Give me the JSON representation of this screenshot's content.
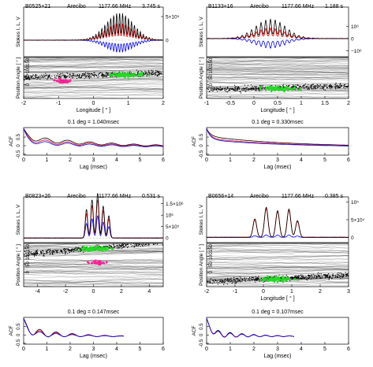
{
  "chart_data": [
    {
      "type": "line",
      "title": {
        "name": "B0525+21",
        "obs": "Arecibo",
        "freq": "1177.66 MHz",
        "period": "3.745 s"
      },
      "stokes": {
        "ylabel": "Stokes I, L, V",
        "xlim": [
          -2,
          2
        ],
        "ylim": [
          -350000.0,
          700000.0
        ],
        "ytick_labels": [
          {
            "v": 500000.0,
            "t": "5×10⁵"
          },
          {
            "v": 0,
            "t": "0"
          }
        ],
        "shape": {
          "type": "comb",
          "center": 0.75,
          "width": 0.55,
          "spacing": 0.085,
          "amp": 580000.0,
          "frac_L": 0.62,
          "frac_V": -0.45
        }
      },
      "pa": {
        "ylabel": "Position Angle [ ° ]",
        "xlabel": "Longitude [ ° ]",
        "ytick_labels": [
          "0",
          "50",
          "100",
          "150"
        ],
        "xticks": [
          -2,
          -1,
          0,
          1,
          2
        ],
        "xtick_labels": [
          "-2",
          "-1",
          "0",
          "1",
          "2"
        ],
        "xlim": [
          -2,
          2
        ],
        "ylim": [
          -90,
          180
        ],
        "green_center": [
          0.9,
          70
        ],
        "magenta_center": [
          -0.9,
          25
        ]
      },
      "acf": {
        "caption": "0.1 deg = 1.040msec",
        "ylabel": "ACF",
        "xlabel": "Lag (msec)",
        "xlim": [
          0,
          6
        ],
        "ylim": [
          -0.55,
          1.05
        ],
        "yticks": [
          -0.5,
          0,
          0.5
        ],
        "ytick_labels": [
          "-0.5",
          "0",
          "0.5"
        ],
        "xticks": [
          0,
          1,
          2,
          3,
          4,
          5,
          6
        ],
        "xtick_labels": [
          "0",
          "1",
          "2",
          "3",
          "4",
          "5",
          "6"
        ],
        "xmax_data": 6,
        "series": [
          {
            "color": "#000000",
            "base": 0.45,
            "osc": 0.16,
            "period": 0.95,
            "decay": 4.0
          },
          {
            "color": "#ff0000",
            "base": 0.32,
            "osc": 0.14,
            "period": 0.95,
            "decay": 4.0
          },
          {
            "color": "#0000ff",
            "base": 0.22,
            "osc": 0.12,
            "period": 0.95,
            "decay": 4.0
          }
        ]
      }
    },
    {
      "type": "line",
      "title": {
        "name": "B1133+16",
        "obs": "Arecibo",
        "freq": "1177.66 MHz",
        "period": "1.188 s"
      },
      "stokes": {
        "ylabel": "Stokes I, L, V",
        "xlim": [
          -1,
          2
        ],
        "ylim": [
          -1500000.0,
          2600000.0
        ],
        "ytick_labels": [
          {
            "v": 1000000.0,
            "t": "10⁶"
          },
          {
            "v": 0,
            "t": "0"
          },
          {
            "v": -1000000.0,
            "t": "−10⁶"
          }
        ],
        "shape": {
          "type": "comb",
          "center": 0.35,
          "width": 0.45,
          "spacing": 0.1,
          "amp": 1600000.0,
          "frac_L": 0.55,
          "frac_V": -0.5
        }
      },
      "pa": {
        "ylabel": "Position Angle [ ° ]",
        "xlabel": "Longitude [ ° ]",
        "ytick_labels": [
          "0",
          "50",
          "100",
          "150"
        ],
        "xticks": [
          -1,
          -0.5,
          0,
          0.5,
          1,
          1.5,
          2
        ],
        "xtick_labels": [
          "-1",
          "-0.5",
          "0",
          "0.5",
          "1",
          "1.5",
          "2"
        ],
        "xlim": [
          -1,
          2
        ],
        "ylim": [
          -90,
          180
        ],
        "green_center": [
          0.5,
          -20
        ],
        "magenta_center": null
      },
      "acf": {
        "caption": "0.1 deg = 0.330msec",
        "ylabel": "ACF",
        "xlabel": "Lag (msec)",
        "xlim": [
          0,
          6
        ],
        "ylim": [
          -0.55,
          1.05
        ],
        "yticks": [
          -0.5,
          0,
          0.5
        ],
        "ytick_labels": [
          "-0.5",
          "0",
          "0.5"
        ],
        "xticks": [
          0,
          1,
          2,
          3,
          4,
          5,
          6
        ],
        "xtick_labels": [
          "0",
          "1",
          "2",
          "3",
          "4",
          "5",
          "6"
        ],
        "xmax_data": 6,
        "series": [
          {
            "color": "#000000",
            "base": 0.55,
            "osc": 0.0,
            "period": 1.0,
            "decay": 4.0
          },
          {
            "color": "#ff0000",
            "base": 0.42,
            "osc": 0.0,
            "period": 1.0,
            "decay": 4.0
          },
          {
            "color": "#0000ff",
            "base": 0.35,
            "osc": 0.0,
            "period": 1.0,
            "decay": 4.0
          }
        ]
      }
    },
    {
      "type": "line",
      "title": {
        "name": "B0823+26",
        "obs": "Arecibo",
        "freq": "1177.66 MHz",
        "period": "0.531 s"
      },
      "stokes": {
        "ylabel": "Stokes I, L, V",
        "xlim": [
          -5,
          5
        ],
        "ylim": [
          -200000.0,
          1800000.0
        ],
        "ytick_labels": [
          {
            "v": 1500000.0,
            "t": "1.5×10⁶"
          },
          {
            "v": 1000000.0,
            "t": "10⁶"
          },
          {
            "v": 500000.0,
            "t": "5×10⁵"
          },
          {
            "v": 0,
            "t": "0"
          }
        ],
        "shape": {
          "type": "spikes",
          "peaks": [
            [
              -0.5,
              0.9
            ],
            [
              -0.1,
              1.2
            ],
            [
              0.3,
              1.4
            ],
            [
              0.7,
              1.0
            ],
            [
              1.1,
              0.7
            ]
          ],
          "pw": 0.12,
          "amp": 1400000.0,
          "frac_L": 0.85,
          "frac_V": 0.5
        }
      },
      "pa": {
        "ylabel": "Position Angle [ ° ]",
        "xlabel": "",
        "ytick_labels": [
          "0",
          "50",
          "100",
          "150"
        ],
        "xticks": [
          -4,
          -2,
          0,
          2,
          4
        ],
        "xtick_labels": [
          "-4",
          "-2",
          "0",
          "2",
          "4"
        ],
        "xlim": [
          -5,
          5
        ],
        "ylim": [
          -90,
          180
        ],
        "green_center": [
          0.0,
          150
        ],
        "magenta_center": [
          0.3,
          60
        ]
      },
      "acf": {
        "caption": "0.1 deg = 0.147msec",
        "ylabel": "ACF",
        "xlabel": "Lag (msec)",
        "xlim": [
          0,
          6
        ],
        "ylim": [
          -0.55,
          1.05
        ],
        "yticks": [
          -0.5,
          0,
          0.5
        ],
        "ytick_labels": [
          "-0.5",
          "0",
          "0.5"
        ],
        "xticks": [
          0,
          1,
          2,
          3,
          4,
          5,
          6
        ],
        "xtick_labels": [
          "0",
          "1",
          "2",
          "3",
          "4",
          "5",
          "6"
        ],
        "xmax_data": 4.3,
        "series": [
          {
            "color": "#000000",
            "base": 0.2,
            "osc": 0.35,
            "period": 0.7,
            "decay": 1.6
          },
          {
            "color": "#ff0000",
            "base": 0.15,
            "osc": 0.28,
            "period": 0.7,
            "decay": 1.6
          },
          {
            "color": "#0000ff",
            "base": 0.1,
            "osc": 0.22,
            "period": 0.7,
            "decay": 1.6
          }
        ]
      }
    },
    {
      "type": "line",
      "title": {
        "name": "B0656+14",
        "obs": "Arecibo",
        "freq": "1177.66 MHz",
        "period": "0.385 s"
      },
      "stokes": {
        "ylabel": "Stokes I, L, V",
        "xlim": [
          -2,
          3
        ],
        "ylim": [
          -15000.0,
          115000.0
        ],
        "ytick_labels": [
          {
            "v": 100000.0,
            "t": "10⁵"
          },
          {
            "v": 50000.0,
            "t": "5×10⁴"
          },
          {
            "v": 0,
            "t": "0"
          }
        ],
        "shape": {
          "type": "spikes",
          "peaks": [
            [
              -0.3,
              0.55
            ],
            [
              0.1,
              0.9
            ],
            [
              0.5,
              0.8
            ],
            [
              0.9,
              0.85
            ],
            [
              1.2,
              0.5
            ]
          ],
          "pw": 0.09,
          "amp": 95000.0,
          "frac_L": 0.95,
          "frac_V": 0.08
        }
      },
      "pa": {
        "ylabel": "Position Angle [ ° ]",
        "xlabel": "Longitude [ ° ]",
        "ytick_labels": [
          "0",
          "50",
          "100",
          "150"
        ],
        "xticks": [
          -2,
          -1,
          0,
          1,
          2,
          3
        ],
        "xtick_labels": [
          "-2",
          "-1",
          "0",
          "1",
          "2",
          "3"
        ],
        "xlim": [
          -2,
          3
        ],
        "ylim": [
          -90,
          180
        ],
        "green_center": [
          0.4,
          -40
        ],
        "magenta_center": null
      },
      "acf": {
        "caption": "0.1 deg = 0.107msec",
        "ylabel": "ACF",
        "xlabel": "Lag (msec)",
        "xlim": [
          0,
          6
        ],
        "ylim": [
          -0.55,
          1.05
        ],
        "yticks": [
          -0.5,
          0,
          0.5
        ],
        "ytick_labels": [
          "-0.5",
          "0",
          "0.5"
        ],
        "xticks": [
          0,
          1,
          2,
          3,
          4,
          5,
          6
        ],
        "xtick_labels": [
          "0",
          "1",
          "2",
          "3",
          "4",
          "5",
          "6"
        ],
        "xmax_data": 3.7,
        "series": [
          {
            "color": "#000000",
            "base": 0.1,
            "osc": 0.28,
            "period": 0.5,
            "decay": 1.4
          },
          {
            "color": "#ff0000",
            "base": 0.07,
            "osc": 0.22,
            "period": 0.5,
            "decay": 1.4
          },
          {
            "color": "#0000ff",
            "base": 0.05,
            "osc": 0.25,
            "period": 0.5,
            "decay": 1.4
          }
        ]
      }
    }
  ]
}
